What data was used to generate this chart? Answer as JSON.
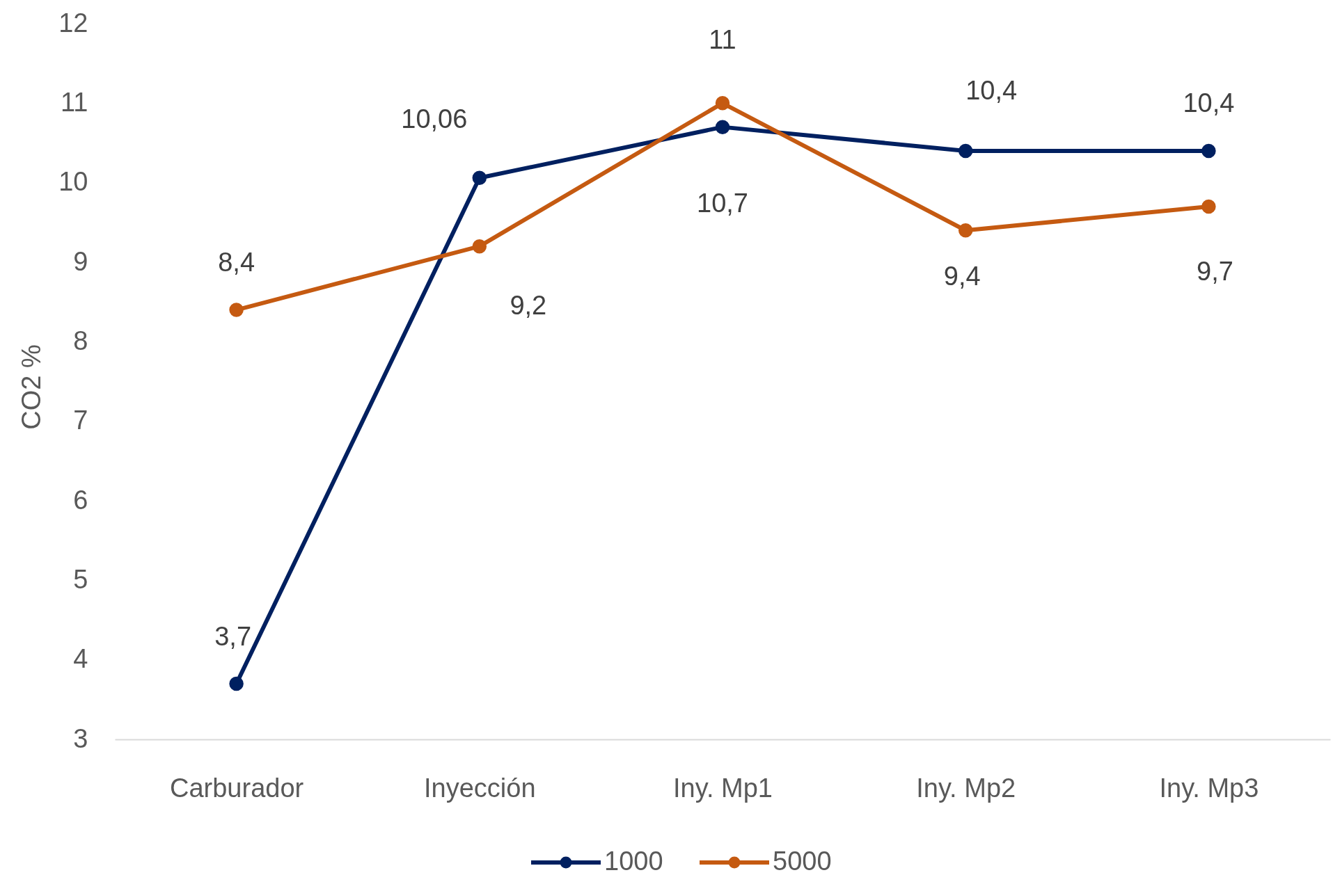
{
  "chart_data": {
    "type": "line",
    "ylabel": "CO2 %",
    "categories": [
      "Carburador",
      "Inyección",
      "Iny. Mp1",
      "Iny. Mp2",
      "Iny. Mp3"
    ],
    "series": [
      {
        "name": "1000",
        "color": "#002060",
        "values": [
          3.7,
          10.06,
          10.7,
          10.4,
          10.4
        ],
        "value_labels": [
          "3,7",
          "10,06",
          "10,7",
          "10,4",
          "10,4"
        ]
      },
      {
        "name": "5000",
        "color": "#c55a11",
        "values": [
          8.4,
          9.2,
          11,
          9.4,
          9.7
        ],
        "value_labels": [
          "8,4",
          "9,2",
          "11",
          "9,4",
          "9,7"
        ]
      }
    ],
    "ylim": [
      3,
      12
    ],
    "yticks": [
      3,
      4,
      5,
      6,
      7,
      8,
      9,
      10,
      11,
      12
    ],
    "grid": false,
    "legend": "bottom",
    "marker": "circle",
    "line_style": "solid"
  }
}
